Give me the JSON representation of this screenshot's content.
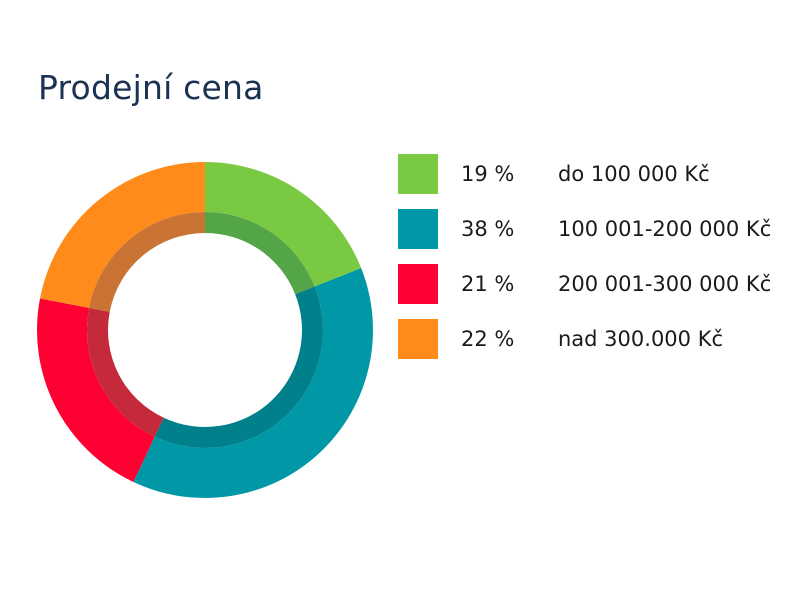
{
  "chart_data": {
    "type": "pie",
    "title": "Prodejní cena",
    "legend_position": "right",
    "categories": [
      "do 100 000 Kč",
      "100 001-200 000 Kč",
      "200 001-300 000 Kč",
      "nad 300.000 Kč"
    ],
    "values": [
      19,
      38,
      21,
      22
    ],
    "value_labels": [
      "19 %",
      "38 %",
      "21 %",
      "22 %"
    ],
    "colors": [
      "#7ac943",
      "#0097a7",
      "#ff0033",
      "#ff8c1a"
    ],
    "inner_ring_colors": [
      "#53a547",
      "#00808b",
      "#c42a3a",
      "#c97435"
    ]
  }
}
